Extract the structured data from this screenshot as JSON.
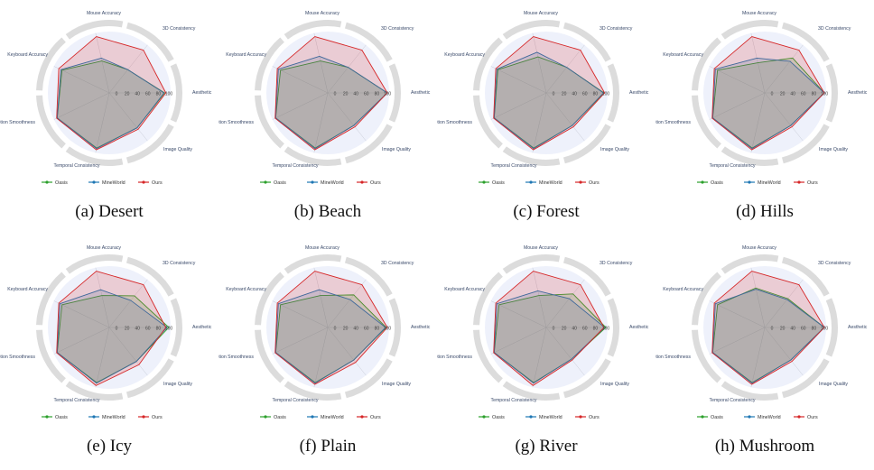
{
  "chart_data": [
    {
      "type": "radar",
      "caption": "(a) Desert",
      "axes": [
        "Aesthetic",
        "3D Consistency",
        "Mouse Accuracy",
        "Keyboard Accuracy",
        "Motion Smoothness",
        "Temporal Consistency",
        "Image Quality"
      ],
      "radial_ticks": [
        "0",
        "20",
        "40",
        "60",
        "80",
        "100"
      ],
      "rlim": [
        0,
        100
      ],
      "legend_position": "bottom",
      "series": [
        {
          "name": "Oasis",
          "color": "#2ca02c",
          "values": [
            93,
            50,
            55,
            88,
            97,
            95,
            75
          ]
        },
        {
          "name": "MineWorld",
          "color": "#1f77b4",
          "values": [
            92,
            50,
            60,
            90,
            97,
            96,
            75
          ]
        },
        {
          "name": "Ours",
          "color": "#d62728",
          "values": [
            95,
            92,
            97,
            94,
            98,
            98,
            78
          ]
        }
      ]
    },
    {
      "type": "radar",
      "caption": "(b) Beach",
      "axes": [
        "Aesthetic",
        "3D Consistency",
        "Mouse Accuracy",
        "Keyboard Accuracy",
        "Motion Smoothness",
        "Temporal Consistency",
        "Image Quality"
      ],
      "radial_ticks": [
        "0",
        "20",
        "40",
        "60",
        "80",
        "100"
      ],
      "rlim": [
        0,
        100
      ],
      "legend_position": "bottom",
      "series": [
        {
          "name": "Oasis",
          "color": "#2ca02c",
          "values": [
            100,
            55,
            55,
            88,
            97,
            95,
            70
          ]
        },
        {
          "name": "MineWorld",
          "color": "#1f77b4",
          "values": [
            100,
            55,
            63,
            92,
            97,
            96,
            70
          ]
        },
        {
          "name": "Ours",
          "color": "#d62728",
          "values": [
            100,
            92,
            97,
            94,
            98,
            98,
            73
          ]
        }
      ]
    },
    {
      "type": "radar",
      "caption": "(c) Forest",
      "axes": [
        "Aesthetic",
        "3D Consistency",
        "Mouse Accuracy",
        "Keyboard Accuracy",
        "Motion Smoothness",
        "Temporal Consistency",
        "Image Quality"
      ],
      "radial_ticks": [
        "0",
        "20",
        "40",
        "60",
        "80",
        "100"
      ],
      "rlim": [
        0,
        100
      ],
      "legend_position": "bottom",
      "series": [
        {
          "name": "Oasis",
          "color": "#2ca02c",
          "values": [
            97,
            55,
            62,
            90,
            97,
            95,
            70
          ]
        },
        {
          "name": "MineWorld",
          "color": "#1f77b4",
          "values": [
            96,
            55,
            70,
            92,
            97,
            96,
            70
          ]
        },
        {
          "name": "Ours",
          "color": "#d62728",
          "values": [
            98,
            92,
            97,
            94,
            98,
            98,
            73
          ]
        }
      ]
    },
    {
      "type": "radar",
      "caption": "(d) Hills",
      "axes": [
        "Aesthetic",
        "3D Consistency",
        "Mouse Accuracy",
        "Keyboard Accuracy",
        "Motion Smoothness",
        "Temporal Consistency",
        "Image Quality"
      ],
      "radial_ticks": [
        "0",
        "20",
        "40",
        "60",
        "80",
        "100"
      ],
      "rlim": [
        0,
        100
      ],
      "legend_position": "bottom",
      "series": [
        {
          "name": "Oasis",
          "color": "#2ca02c",
          "values": [
            100,
            75,
            52,
            88,
            97,
            95,
            70
          ]
        },
        {
          "name": "MineWorld",
          "color": "#1f77b4",
          "values": [
            100,
            68,
            60,
            92,
            97,
            96,
            70
          ]
        },
        {
          "name": "Ours",
          "color": "#d62728",
          "values": [
            100,
            92,
            97,
            94,
            98,
            98,
            73
          ]
        }
      ]
    },
    {
      "type": "radar",
      "caption": "(e) Icy",
      "axes": [
        "Aesthetic",
        "3D Consistency",
        "Mouse Accuracy",
        "Keyboard Accuracy",
        "Motion Smoothness",
        "Temporal Consistency",
        "Image Quality"
      ],
      "radial_ticks": [
        "0",
        "20",
        "40",
        "60",
        "80",
        "100"
      ],
      "rlim": [
        0,
        100
      ],
      "legend_position": "bottom",
      "series": [
        {
          "name": "Oasis",
          "color": "#2ca02c",
          "values": [
            100,
            68,
            55,
            88,
            97,
            95,
            73
          ]
        },
        {
          "name": "MineWorld",
          "color": "#1f77b4",
          "values": [
            97,
            58,
            65,
            92,
            97,
            96,
            73
          ]
        },
        {
          "name": "Ours",
          "color": "#d62728",
          "values": [
            95,
            92,
            97,
            94,
            98,
            100,
            80
          ]
        }
      ]
    },
    {
      "type": "radar",
      "caption": "(f) Plain",
      "axes": [
        "Aesthetic",
        "3D Consistency",
        "Mouse Accuracy",
        "Keyboard Accuracy",
        "Motion Smoothness",
        "Temporal Consistency",
        "Image Quality"
      ],
      "radial_ticks": [
        "0",
        "20",
        "40",
        "60",
        "80",
        "100"
      ],
      "rlim": [
        0,
        100
      ],
      "legend_position": "bottom",
      "series": [
        {
          "name": "Oasis",
          "color": "#2ca02c",
          "values": [
            98,
            70,
            55,
            88,
            97,
            95,
            70
          ]
        },
        {
          "name": "MineWorld",
          "color": "#1f77b4",
          "values": [
            97,
            60,
            65,
            92,
            97,
            96,
            70
          ]
        },
        {
          "name": "Ours",
          "color": "#d62728",
          "values": [
            100,
            92,
            97,
            94,
            98,
            98,
            75
          ]
        }
      ]
    },
    {
      "type": "radar",
      "caption": "(g) River",
      "axes": [
        "Aesthetic",
        "3D Consistency",
        "Mouse Accuracy",
        "Keyboard Accuracy",
        "Motion Smoothness",
        "Temporal Consistency",
        "Image Quality"
      ],
      "radial_ticks": [
        "0",
        "20",
        "40",
        "60",
        "80",
        "100"
      ],
      "rlim": [
        0,
        100
      ],
      "legend_position": "bottom",
      "series": [
        {
          "name": "Oasis",
          "color": "#2ca02c",
          "values": [
            100,
            72,
            55,
            88,
            97,
            95,
            68
          ]
        },
        {
          "name": "MineWorld",
          "color": "#1f77b4",
          "values": [
            98,
            62,
            63,
            92,
            97,
            96,
            68
          ]
        },
        {
          "name": "Ours",
          "color": "#d62728",
          "values": [
            97,
            92,
            97,
            94,
            98,
            100,
            70
          ]
        }
      ]
    },
    {
      "type": "radar",
      "caption": "(h) Mushroom",
      "axes": [
        "Aesthetic",
        "3D Consistency",
        "Mouse Accuracy",
        "Keyboard Accuracy",
        "Motion Smoothness",
        "Temporal Consistency",
        "Image Quality"
      ],
      "radial_ticks": [
        "0",
        "20",
        "40",
        "60",
        "80",
        "100"
      ],
      "rlim": [
        0,
        100
      ],
      "legend_position": "bottom",
      "series": [
        {
          "name": "Oasis",
          "color": "#2ca02c",
          "values": [
            100,
            62,
            68,
            88,
            97,
            95,
            70
          ]
        },
        {
          "name": "MineWorld",
          "color": "#1f77b4",
          "values": [
            100,
            60,
            66,
            92,
            97,
            96,
            70
          ]
        },
        {
          "name": "Ours",
          "color": "#d62728",
          "values": [
            100,
            92,
            97,
            94,
            98,
            98,
            73
          ]
        }
      ]
    }
  ],
  "colors": {
    "outer_ring": "#dcdcdc",
    "plot_background": "#eef1fb",
    "axis_line": "#c8cbd6"
  }
}
